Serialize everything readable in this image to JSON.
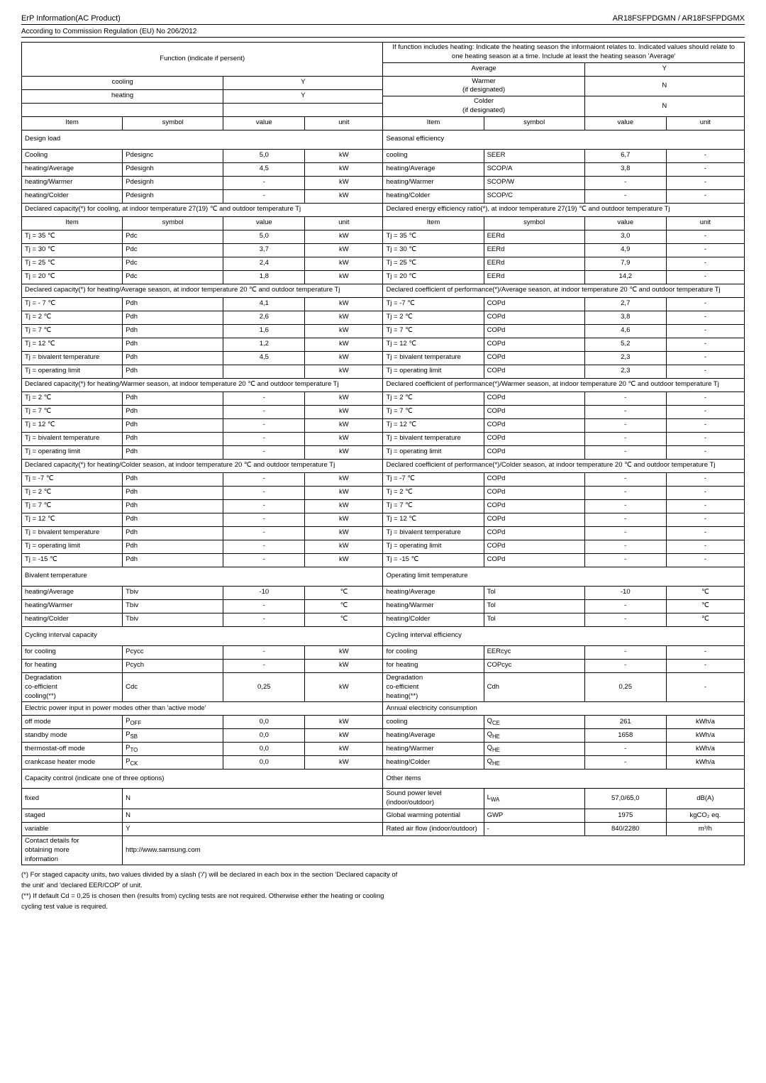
{
  "header": {
    "left_title": "ErP Information(AC Product)",
    "right_title": "AR18FSFPDGMN / AR18FSFPDGMX",
    "subtitle": "According to Commission Regulation (EU) No 206/2012"
  },
  "top": {
    "function_label": "Function (indicate if persent)",
    "info_label": "If function includes heating: Indicate the heating season the informaiont relates to. Indicated values should relate to one heating season at a time. Include at least the heating season 'Average'",
    "rows": [
      {
        "l": "cooling",
        "lv": "Y",
        "r": "Average",
        "rv": "Y"
      },
      {
        "l": "heating",
        "lv": "Y",
        "r": "Warmer\n(if designated)",
        "rv": "N"
      },
      {
        "l": "",
        "lv": "",
        "r": "Colder\n(if designated)",
        "rv": "N"
      }
    ],
    "hdr": {
      "item": "Item",
      "symbol": "symbol",
      "value": "value",
      "unit": "unit"
    }
  },
  "design_load_label": "Design load",
  "seasonal_eff_label": "Seasonal efficiency",
  "design_rows": [
    {
      "a": "Cooling",
      "b": "Pdesignc",
      "c": "5,0",
      "d": "kW",
      "e": "cooling",
      "f": "SEER",
      "g": "6,7",
      "h": "-"
    },
    {
      "a": "heating/Average",
      "b": "Pdesignh",
      "c": "4,5",
      "d": "kW",
      "e": "heating/Average",
      "f": "SCOP/A",
      "g": "3,8",
      "h": "-"
    },
    {
      "a": "heating/Warmer",
      "b": "Pdesignh",
      "c": "-",
      "d": "kW",
      "e": "heating/Warmer",
      "f": "SCOP/W",
      "g": "-",
      "h": "-"
    },
    {
      "a": "heating/Colder",
      "b": "Pdesignh",
      "c": "-",
      "d": "kW",
      "e": "heating/Colder",
      "f": "SCOP/C",
      "g": "-",
      "h": "-"
    }
  ],
  "sect_cooling_cap": "Declared capacity(*) for cooling, at indoor temperature 27(19) ℃ and outdoor temperature Tj",
  "sect_cooling_eff": "Declared energy efficiency ratio(*), at indoor temperature 27(19) ℃ and outdoor temperature Tj",
  "cooling_rows": [
    {
      "a": "Tj = 35 ℃",
      "b": "Pdc",
      "c": "5,0",
      "d": "kW",
      "e": "Tj = 35 ℃",
      "f": "EERd",
      "g": "3,0",
      "h": "-"
    },
    {
      "a": "Tj = 30 ℃",
      "b": "Pdc",
      "c": "3,7",
      "d": "kW",
      "e": "Tj = 30 ℃",
      "f": "EERd",
      "g": "4,9",
      "h": "-"
    },
    {
      "a": "Tj = 25 ℃",
      "b": "Pdc",
      "c": "2,4",
      "d": "kW",
      "e": "Tj = 25 ℃",
      "f": "EERd",
      "g": "7,9",
      "h": "-"
    },
    {
      "a": "Tj = 20 ℃",
      "b": "Pdc",
      "c": "1,8",
      "d": "kW",
      "e": "Tj = 20 ℃",
      "f": "EERd",
      "g": "14,2",
      "h": "-"
    }
  ],
  "sect_avg_cap": "Declared capacity(*) for heating/Average season, at indoor temperature 20 ℃ and outdoor temperature Tj",
  "sect_avg_eff": "Declared coefficient of performance(*)/Average season, at indoor temperature 20 ℃ and outdoor temperature Tj",
  "avg_rows": [
    {
      "a": "Tj = - 7 ℃",
      "b": "Pdh",
      "c": "4,1",
      "d": "kW",
      "e": "Tj = -7 ℃",
      "f": "COPd",
      "g": "2,7",
      "h": "-"
    },
    {
      "a": "Tj = 2 ℃",
      "b": "Pdh",
      "c": "2,6",
      "d": "kW",
      "e": "Tj = 2 ℃",
      "f": "COPd",
      "g": "3,8",
      "h": "-"
    },
    {
      "a": "Tj = 7 ℃",
      "b": "Pdh",
      "c": "1,6",
      "d": "kW",
      "e": "Tj = 7 ℃",
      "f": "COPd",
      "g": "4,6",
      "h": "-"
    },
    {
      "a": "Tj = 12 ℃",
      "b": "Pdh",
      "c": "1,2",
      "d": "kW",
      "e": "Tj = 12 ℃",
      "f": "COPd",
      "g": "5,2",
      "h": "-"
    },
    {
      "a": "Tj = bivalent temperature",
      "b": "Pdh",
      "c": "4,5",
      "d": "kW",
      "e": "Tj = bivalent temperature",
      "f": "COPd",
      "g": "2,3",
      "h": "-"
    },
    {
      "a": "Tj = operating limit",
      "b": "Pdh",
      "c": "",
      "d": "kW",
      "e": "Tj = operating limit",
      "f": "COPd",
      "g": "2,3",
      "h": "-"
    }
  ],
  "sect_warm_cap": "Declared capacity(*) for heating/Warmer season, at indoor temperature 20 ℃ and outdoor temperature Tj",
  "sect_warm_eff": "Declared coefficient of performance(*)/Warmer season, at indoor temperature 20 ℃ and outdoor temperature Tj",
  "warm_rows": [
    {
      "a": "Tj = 2 ℃",
      "b": "Pdh",
      "c": "-",
      "d": "kW",
      "e": "Tj = 2 ℃",
      "f": "COPd",
      "g": "-",
      "h": "-"
    },
    {
      "a": "Tj = 7 ℃",
      "b": "Pdh",
      "c": "-",
      "d": "kW",
      "e": "Tj = 7 ℃",
      "f": "COPd",
      "g": "-",
      "h": "-"
    },
    {
      "a": "Tj = 12 ℃",
      "b": "Pdh",
      "c": "-",
      "d": "kW",
      "e": "Tj = 12 ℃",
      "f": "COPd",
      "g": "-",
      "h": "-"
    },
    {
      "a": "Tj = bivalent temperature",
      "b": "Pdh",
      "c": "-",
      "d": "kW",
      "e": "Tj = bivalent temperature",
      "f": "COPd",
      "g": "-",
      "h": "-"
    },
    {
      "a": "Tj = operating limit",
      "b": "Pdh",
      "c": "-",
      "d": "kW",
      "e": "Tj = operating limit",
      "f": "COPd",
      "g": "-",
      "h": "-"
    }
  ],
  "sect_cold_cap": "Declared capacity(*) for heating/Colder season, at indoor temperature 20 ℃ and outdoor temperature Tj",
  "sect_cold_eff": "Declared coefficient of performance(*)/Colder season, at indoor temperature 20 ℃ and outdoor temperature Tj",
  "cold_rows": [
    {
      "a": "Tj = -7 ℃",
      "b": "Pdh",
      "c": "-",
      "d": "kW",
      "e": "Tj = -7 ℃",
      "f": "COPd",
      "g": "-",
      "h": "-"
    },
    {
      "a": "Tj = 2 ℃",
      "b": "Pdh",
      "c": "-",
      "d": "kW",
      "e": "Tj = 2 ℃",
      "f": "COPd",
      "g": "-",
      "h": "-"
    },
    {
      "a": "Tj = 7 ℃",
      "b": "Pdh",
      "c": "-",
      "d": "kW",
      "e": "Tj = 7 ℃",
      "f": "COPd",
      "g": "-",
      "h": "-"
    },
    {
      "a": "Tj = 12 ℃",
      "b": "Pdh",
      "c": "-",
      "d": "kW",
      "e": "Tj = 12 ℃",
      "f": "COPd",
      "g": "-",
      "h": "-"
    },
    {
      "a": "Tj = bivalent temperature",
      "b": "Pdh",
      "c": "-",
      "d": "kW",
      "e": "Tj = bivalent temperature",
      "f": "COPd",
      "g": "-",
      "h": "-"
    },
    {
      "a": "Tj = operating limit",
      "b": "Pdh",
      "c": "-",
      "d": "kW",
      "e": "Tj = operating limit",
      "f": "COPd",
      "g": "-",
      "h": "-"
    },
    {
      "a": "Tj = -15 ℃",
      "b": "Pdh",
      "c": "-",
      "d": "kW",
      "e": "Tj = -15 ℃",
      "f": "COPd",
      "g": "-",
      "h": "-"
    }
  ],
  "biv_label": "Bivalent temperature",
  "opl_label": "Operating limit temperature",
  "biv_rows": [
    {
      "a": "heating/Average",
      "b": "Tbiv",
      "c": "-10",
      "d": "℃",
      "e": "heating/Average",
      "f": "Tol",
      "g": "-10",
      "h": "℃"
    },
    {
      "a": "heating/Warmer",
      "b": "Tbiv",
      "c": "-",
      "d": "℃",
      "e": "heating/Warmer",
      "f": "Tol",
      "g": "-",
      "h": "℃"
    },
    {
      "a": "heating/Colder",
      "b": "Tbiv",
      "c": "-",
      "d": "℃",
      "e": "heating/Colder",
      "f": "Tol",
      "g": "-",
      "h": "℃"
    }
  ],
  "cyc_cap": "Cycling interval capacity",
  "cyc_eff": "Cycling interval efficiency",
  "cyc_rows": [
    {
      "a": "for cooling",
      "b": "Pcycc",
      "c": "-",
      "d": "kW",
      "e": "for cooling",
      "f": "EERcyc",
      "g": "-",
      "h": "-"
    },
    {
      "a": "for heating",
      "b": "Pcych",
      "c": "-",
      "d": "kW",
      "e": "for heating",
      "f": "COPcyc",
      "g": "-",
      "h": "-"
    }
  ],
  "deg_row": {
    "a": "Degradation co-efficient cooling(**)",
    "b": "Cdc",
    "c": "0,25",
    "d": "kW",
    "e": "Degradation co-efficient heating(**)",
    "f": "Cdh",
    "g": "0,25",
    "h": "-"
  },
  "power_label": "Electric power input in power modes other than 'active mode'",
  "annual_label": "Annual electricity consumption",
  "power_rows": [
    {
      "a": "off mode",
      "b": "P_OFF",
      "c": "0,0",
      "d": "kW",
      "e": "cooling",
      "f": "Q_CE",
      "g": "261",
      "h": "kWh/a"
    },
    {
      "a": "standby mode",
      "b": "P_SB",
      "c": "0,0",
      "d": "kW",
      "e": "heating/Average",
      "f": "Q_HE",
      "g": "1658",
      "h": "kWh/a"
    },
    {
      "a": "thermostat-off mode",
      "b": "P_TO",
      "c": "0,0",
      "d": "kW",
      "e": "heating/Warmer",
      "f": "Q_HE",
      "g": "-",
      "h": "kWh/a"
    },
    {
      "a": "crankcase heater mode",
      "b": "P_CK",
      "c": "0,0",
      "d": "kW",
      "e": "heating/Colder",
      "f": "Q_HE",
      "g": "-",
      "h": "kWh/a"
    }
  ],
  "cap_ctrl": "Capacity control (indicate one of three options)",
  "other": "Other items",
  "other_rows": [
    {
      "a": "fixed",
      "b": "N",
      "e": "Sound power level (indoor/outdoor)",
      "f": "L_WA",
      "g": "57,0/65,0",
      "h": "dB(A)"
    },
    {
      "a": "staged",
      "b": "N",
      "e": "Global warming potential",
      "f": "GWP",
      "g": "1975",
      "h": "kgCO₂ eq."
    },
    {
      "a": "variable",
      "b": "Y",
      "e": "Rated air flow (indoor/outdoor)",
      "f": "-",
      "g": "840/2280",
      "h": "m³/h"
    }
  ],
  "contact": {
    "a": "Contact details for obtaining more information",
    "b": "http://www.samsung.com"
  },
  "footnotes": {
    "f1": "(*)  For staged capacity units, two values divided by a slash ('/') will be declared in each box in the section 'Declared capacity of",
    "f1b": "     the unit' and 'declared EER/COP' of unit.",
    "f2": "(**) If default Cd = 0,25 is chosen then (results from) cycling tests are not required. Otherwise either the heating or cooling",
    "f2b": "     cycling test value is required."
  },
  "colwidths": {
    "c1": 142,
    "c2": 142,
    "c3": 115,
    "c4": 110,
    "c5": 142,
    "c6": 142,
    "c7": 115,
    "c8": 110
  }
}
